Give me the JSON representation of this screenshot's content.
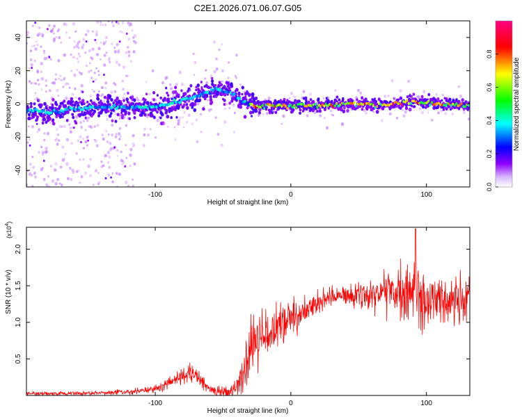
{
  "title": "C2E1.2026.071.06.07.G05",
  "chart_data": [
    {
      "type": "heatmap",
      "name": "spectrogram",
      "xlabel": "Height of straight line (km)",
      "ylabel": "Frequency (Hz)",
      "xlim": [
        -195,
        132
      ],
      "ylim": [
        -50,
        50
      ],
      "xticks": [
        -100,
        0,
        100
      ],
      "yticks": [
        -40,
        -20,
        0,
        20,
        40
      ],
      "xtick_labels": [
        "-100",
        "0",
        "100"
      ],
      "ytick_labels": [
        "-40",
        "-20",
        "0",
        "20",
        "40"
      ],
      "ridge": {
        "x": [
          -195,
          -180,
          -160,
          -140,
          -120,
          -100,
          -80,
          -65,
          -55,
          -45,
          -38,
          -32,
          -25,
          0,
          20,
          40,
          55,
          70,
          85,
          95,
          110,
          132
        ],
        "y": [
          -4,
          -5,
          -3,
          -2,
          -2,
          -2,
          2,
          6,
          9,
          7,
          3,
          0,
          -1,
          -1,
          -1,
          0,
          0,
          -1,
          1,
          1,
          0,
          -1
        ]
      },
      "colorbar": {
        "label": "Normalized spectral amplitude",
        "range": [
          0,
          1
        ],
        "ticks": [
          0.0,
          0.2,
          0.4,
          0.6,
          0.8
        ],
        "tick_labels": [
          "0.0",
          "0.2",
          "0.4",
          "0.6",
          "0.8"
        ],
        "colormap": [
          "#ffffff",
          "#8f00ff",
          "#0000ff",
          "#00ffff",
          "#00ff00",
          "#ffff00",
          "#ff0000",
          "#ff0080"
        ]
      }
    },
    {
      "type": "line",
      "name": "snr",
      "xlabel": "Height of straight line (km)",
      "ylabel": "SNR (10 * v/v)",
      "scale_label": "(x10",
      "scale_exponent": "4",
      "xlim": [
        -195,
        132
      ],
      "ylim": [
        0,
        2.3
      ],
      "xticks": [
        -100,
        0,
        100
      ],
      "yticks": [
        0.5,
        1.0,
        1.5,
        2.0
      ],
      "xtick_labels": [
        "-100",
        "0",
        "100"
      ],
      "ytick_labels": [
        "0.5",
        "1.0",
        "1.5",
        "2.0"
      ],
      "color": "#ff0000",
      "trend": {
        "x": [
          -195,
          -150,
          -120,
          -100,
          -90,
          -80,
          -74,
          -66,
          -58,
          -50,
          -42,
          -35,
          -30,
          -25,
          -15,
          -5,
          5,
          15,
          25,
          35,
          45,
          60,
          75,
          85,
          92,
          100,
          110,
          120,
          132
        ],
        "y": [
          0.02,
          0.03,
          0.05,
          0.09,
          0.16,
          0.26,
          0.32,
          0.2,
          0.08,
          0.04,
          0.08,
          0.25,
          0.6,
          0.75,
          0.9,
          1.0,
          1.1,
          1.2,
          1.3,
          1.35,
          1.38,
          1.4,
          1.42,
          1.38,
          1.38,
          1.32,
          1.3,
          1.28,
          1.3
        ]
      },
      "noise_amplitude": {
        "x": [
          -195,
          -130,
          -100,
          -80,
          -60,
          -40,
          -30,
          -20,
          0,
          40,
          60,
          80,
          90,
          100,
          120,
          132
        ],
        "y": [
          0.02,
          0.03,
          0.05,
          0.1,
          0.06,
          0.1,
          0.35,
          0.3,
          0.2,
          0.12,
          0.25,
          0.3,
          0.45,
          0.3,
          0.25,
          0.3
        ]
      },
      "peak": {
        "x": 92,
        "y": 2.28
      }
    }
  ]
}
